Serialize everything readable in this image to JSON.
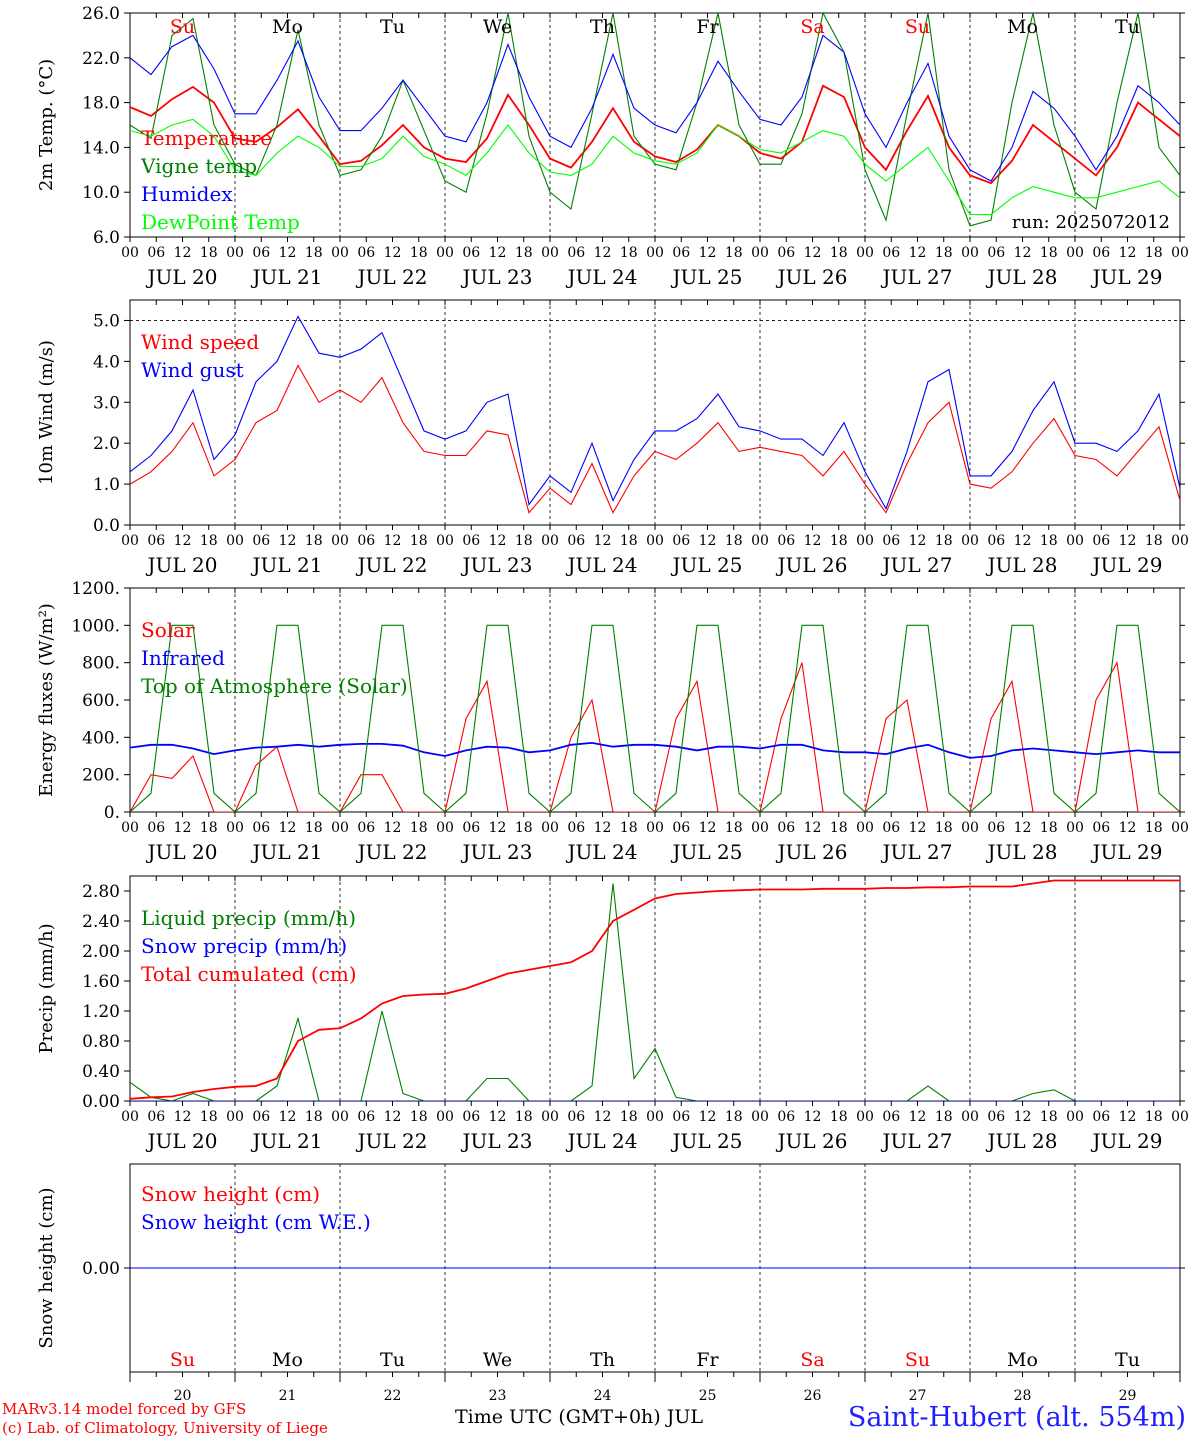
{
  "chart_data": [
    {
      "type": "line",
      "ylabel": "2m Temp. (°C)",
      "ylim": [
        6,
        26
      ],
      "yticks": [
        "6.0",
        "10.0",
        "14.0",
        "18.0",
        "22.0",
        "26.0"
      ],
      "legend": [
        "Temperature",
        "Vigne temp",
        "Humidex",
        "DewPoint Temp"
      ],
      "annotation": "run: 2025072012",
      "x_step_hours": 6,
      "series": [
        {
          "name": "Temperature",
          "color": "#ff0000",
          "values": [
            17.6,
            16.8,
            18.3,
            19.4,
            18.0,
            14.8,
            14.5,
            15.8,
            17.4,
            15.0,
            12.5,
            12.8,
            14.2,
            16.0,
            14.0,
            13.0,
            12.7,
            14.8,
            18.7,
            16.0,
            13.0,
            12.2,
            14.5,
            17.5,
            14.5,
            13.2,
            12.7,
            13.8,
            16.0,
            15.0,
            13.5,
            13.0,
            14.5,
            19.5,
            18.5,
            14.0,
            12.0,
            15.5,
            18.6,
            14.0,
            11.5,
            10.8,
            12.8,
            16.0,
            14.5,
            13.0,
            11.5,
            14.0,
            18.0,
            16.5,
            15.0
          ]
        },
        {
          "name": "Vigne temp",
          "color": "#008000",
          "values": [
            16.0,
            14.8,
            24.0,
            25.5,
            16.0,
            12.5,
            11.5,
            16.0,
            24.5,
            16.0,
            11.5,
            12.0,
            15.0,
            20.0,
            15.5,
            11.0,
            10.0,
            17.0,
            26.0,
            15.0,
            10.0,
            8.5,
            17.0,
            26.0,
            15.0,
            12.5,
            12.0,
            18.0,
            26.0,
            16.0,
            12.5,
            12.5,
            17.0,
            26.0,
            22.5,
            12.0,
            7.5,
            17.0,
            26.0,
            12.0,
            7.0,
            7.5,
            18.0,
            26.0,
            16.0,
            10.0,
            8.5,
            18.0,
            26.0,
            14.0,
            11.5
          ]
        },
        {
          "name": "Humidex",
          "color": "#0000ff",
          "values": [
            22.0,
            20.5,
            23.0,
            24.0,
            21.0,
            17.0,
            17.0,
            20.0,
            23.5,
            18.5,
            15.5,
            15.5,
            17.5,
            20.0,
            17.5,
            15.0,
            14.5,
            18.0,
            23.2,
            18.5,
            15.0,
            14.0,
            17.5,
            22.3,
            17.5,
            16.0,
            15.3,
            18.0,
            21.7,
            19.0,
            16.5,
            16.0,
            18.5,
            24.0,
            22.5,
            17.0,
            14.0,
            18.0,
            21.5,
            15.0,
            12.0,
            11.0,
            14.0,
            19.0,
            17.5,
            15.0,
            12.0,
            15.0,
            19.5,
            18.0,
            16.0
          ]
        },
        {
          "name": "DewPoint Temp",
          "color": "#00ff00",
          "values": [
            15.5,
            15.0,
            16.0,
            16.5,
            15.0,
            12.0,
            11.5,
            13.5,
            15.0,
            14.0,
            12.3,
            12.3,
            13.0,
            15.0,
            13.2,
            12.5,
            11.5,
            13.5,
            16.0,
            13.5,
            11.8,
            11.5,
            12.5,
            15.0,
            13.5,
            12.8,
            12.5,
            13.5,
            16.0,
            15.0,
            13.8,
            13.5,
            14.5,
            15.5,
            15.0,
            12.5,
            11.0,
            12.5,
            14.0,
            11.0,
            8.0,
            8.0,
            9.5,
            10.5,
            10.0,
            9.5,
            9.5,
            10.0,
            10.5,
            11.0,
            9.5
          ]
        }
      ]
    },
    {
      "type": "line",
      "ylabel": "10m Wind (m/s)",
      "ylim": [
        0,
        5.5
      ],
      "yticks": [
        "0.0",
        "1.0",
        "2.0",
        "3.0",
        "4.0",
        "5.0"
      ],
      "legend": [
        "Wind speed",
        "Wind gust"
      ],
      "x_step_hours": 6,
      "series": [
        {
          "name": "Wind speed",
          "color": "#ff0000",
          "values": [
            1.0,
            1.3,
            1.8,
            2.5,
            1.2,
            1.6,
            2.5,
            2.8,
            3.9,
            3.0,
            3.3,
            3.0,
            3.6,
            2.5,
            1.8,
            1.7,
            1.7,
            2.3,
            2.2,
            0.3,
            0.9,
            0.5,
            1.5,
            0.3,
            1.2,
            1.8,
            1.6,
            2.0,
            2.5,
            1.8,
            1.9,
            1.8,
            1.7,
            1.2,
            1.8,
            1.0,
            0.3,
            1.5,
            2.5,
            3.0,
            1.0,
            0.9,
            1.3,
            2.0,
            2.6,
            1.7,
            1.6,
            1.2,
            1.8,
            2.4,
            0.6
          ]
        },
        {
          "name": "Wind gust",
          "color": "#0000ff",
          "values": [
            1.3,
            1.7,
            2.3,
            3.3,
            1.6,
            2.2,
            3.5,
            4.0,
            5.1,
            4.2,
            4.1,
            4.3,
            4.7,
            3.5,
            2.3,
            2.1,
            2.3,
            3.0,
            3.2,
            0.5,
            1.2,
            0.8,
            2.0,
            0.6,
            1.6,
            2.3,
            2.3,
            2.6,
            3.2,
            2.4,
            2.3,
            2.1,
            2.1,
            1.7,
            2.5,
            1.3,
            0.4,
            1.8,
            3.5,
            3.8,
            1.2,
            1.2,
            1.8,
            2.8,
            3.5,
            2.0,
            2.0,
            1.8,
            2.3,
            3.2,
            0.9
          ]
        }
      ]
    },
    {
      "type": "line",
      "ylabel": "Energy fluxes (W/m²)",
      "ylim": [
        0,
        1200
      ],
      "yticks": [
        "0.",
        "200.",
        "400.",
        "600.",
        "800.",
        "1000.",
        "1200."
      ],
      "legend": [
        "Solar",
        "Infrared",
        "Top of Atmosphere (Solar)"
      ],
      "x_step_hours": 6,
      "series": [
        {
          "name": "Solar",
          "color": "#ff0000",
          "values": [
            0,
            200,
            180,
            300,
            0,
            0,
            250,
            350,
            0,
            0,
            0,
            200,
            200,
            0,
            0,
            0,
            500,
            700,
            0,
            0,
            0,
            400,
            600,
            0,
            0,
            0,
            500,
            700,
            0,
            0,
            0,
            500,
            800,
            0,
            0,
            0,
            500,
            600,
            0,
            0,
            0,
            500,
            700,
            0,
            0,
            0,
            600,
            800,
            0,
            0,
            0
          ]
        },
        {
          "name": "Infrared",
          "color": "#0000ff",
          "values": [
            345,
            360,
            360,
            340,
            310,
            330,
            345,
            350,
            360,
            350,
            360,
            365,
            365,
            355,
            320,
            300,
            330,
            350,
            345,
            320,
            330,
            360,
            370,
            350,
            360,
            360,
            350,
            330,
            350,
            350,
            340,
            360,
            360,
            330,
            320,
            320,
            310,
            340,
            360,
            320,
            290,
            300,
            330,
            340,
            330,
            320,
            310,
            320,
            330,
            320,
            320
          ]
        },
        {
          "name": "Top of Atmosphere (Solar)",
          "color": "#008000",
          "values": [
            0,
            100,
            1000,
            1000,
            100,
            0,
            100,
            1000,
            1000,
            100,
            0,
            100,
            1000,
            1000,
            100,
            0,
            100,
            1000,
            1000,
            100,
            0,
            100,
            1000,
            1000,
            100,
            0,
            100,
            1000,
            1000,
            100,
            0,
            100,
            1000,
            1000,
            100,
            0,
            100,
            1000,
            1000,
            100,
            0,
            100,
            1000,
            1000,
            100,
            0,
            100,
            1000,
            1000,
            100,
            0
          ]
        }
      ]
    },
    {
      "type": "line",
      "ylabel": "Precip (mm/h)",
      "ylim": [
        0,
        3.0
      ],
      "yticks": [
        "0.00",
        "0.40",
        "0.80",
        "1.20",
        "1.60",
        "2.00",
        "2.40",
        "2.80"
      ],
      "legend": [
        "Liquid precip (mm/h)",
        "Snow precip (mm/h)",
        "Total cumulated (cm)"
      ],
      "x_step_hours": 6,
      "series": [
        {
          "name": "Liquid precip (mm/h)",
          "color": "#008000",
          "values": [
            0.25,
            0.05,
            0.0,
            0.1,
            0.0,
            0.0,
            0.0,
            0.2,
            1.1,
            0.0,
            0.0,
            0.0,
            1.2,
            0.1,
            0.0,
            0.0,
            0.0,
            0.3,
            0.3,
            0.0,
            0.0,
            0.0,
            0.2,
            2.9,
            0.3,
            0.7,
            0.05,
            0.0,
            0.0,
            0.0,
            0.0,
            0.0,
            0.0,
            0.0,
            0.0,
            0.0,
            0.0,
            0.0,
            0.2,
            0.0,
            0.0,
            0.0,
            0.0,
            0.1,
            0.15,
            0.0,
            0.0,
            0.0,
            0.0,
            0.0,
            0.0
          ]
        },
        {
          "name": "Snow precip (mm/h)",
          "color": "#0000ff",
          "values": [
            0,
            0,
            0,
            0,
            0,
            0,
            0,
            0,
            0,
            0,
            0,
            0,
            0,
            0,
            0,
            0,
            0,
            0,
            0,
            0,
            0,
            0,
            0,
            0,
            0,
            0,
            0,
            0,
            0,
            0,
            0,
            0,
            0,
            0,
            0,
            0,
            0,
            0,
            0,
            0,
            0,
            0,
            0,
            0,
            0,
            0,
            0,
            0,
            0,
            0,
            0
          ]
        },
        {
          "name": "Total cumulated (cm)",
          "color": "#ff0000",
          "values": [
            0.03,
            0.05,
            0.06,
            0.12,
            0.16,
            0.19,
            0.2,
            0.3,
            0.8,
            0.95,
            0.97,
            1.1,
            1.3,
            1.4,
            1.42,
            1.43,
            1.5,
            1.6,
            1.7,
            1.75,
            1.8,
            1.85,
            2.0,
            2.4,
            2.55,
            2.7,
            2.76,
            2.78,
            2.8,
            2.81,
            2.82,
            2.82,
            2.82,
            2.83,
            2.83,
            2.83,
            2.84,
            2.84,
            2.85,
            2.85,
            2.86,
            2.86,
            2.86,
            2.9,
            2.94,
            2.94,
            2.94,
            2.94,
            2.94,
            2.94,
            2.94
          ]
        }
      ]
    },
    {
      "type": "line",
      "ylabel": "Snow height (cm)",
      "ylim": [
        -1,
        1
      ],
      "yticks": [
        "0.00"
      ],
      "legend": [
        "Snow height (cm)",
        "Snow height (cm W.E.)"
      ],
      "x_step_hours": 6,
      "series": [
        {
          "name": "Snow height (cm)",
          "color": "#ff0000",
          "values": [
            0,
            0
          ]
        },
        {
          "name": "Snow height (cm W.E.)",
          "color": "#0000ff",
          "values": [
            0,
            0
          ]
        }
      ]
    }
  ],
  "x_axis": {
    "hour_labels": [
      "00",
      "06",
      "12",
      "18"
    ],
    "days": [
      "JUL 20",
      "JUL 21",
      "JUL 22",
      "JUL 23",
      "JUL 24",
      "JUL 25",
      "JUL 26",
      "JUL 27",
      "JUL 28",
      "JUL 29"
    ],
    "weekday_top": [
      "Su",
      "Mo",
      "Tu",
      "We",
      "Th",
      "Fr",
      "Sa",
      "Su",
      "Mo",
      "Tu"
    ],
    "weekday_bottom": [
      "Su",
      "Mo",
      "Tu",
      "We",
      "Th",
      "Fr",
      "Sa",
      "Su",
      "Mo",
      "Tu"
    ],
    "weekday_colors": [
      "#ff0000",
      "#000000",
      "#000000",
      "#000000",
      "#000000",
      "#000000",
      "#ff0000",
      "#ff0000",
      "#000000",
      "#000000"
    ],
    "day_numbers": [
      "20",
      "21",
      "22",
      "23",
      "24",
      "25",
      "26",
      "27",
      "28",
      "29"
    ]
  },
  "footer": {
    "credit_line1": "MARv3.14 model forced by GFS",
    "credit_line2": "(c) Lab. of Climatology, University of Liege",
    "xtitle": "Time UTC (GMT+0h) JUL",
    "station": "Saint-Hubert (alt. 554m)"
  }
}
